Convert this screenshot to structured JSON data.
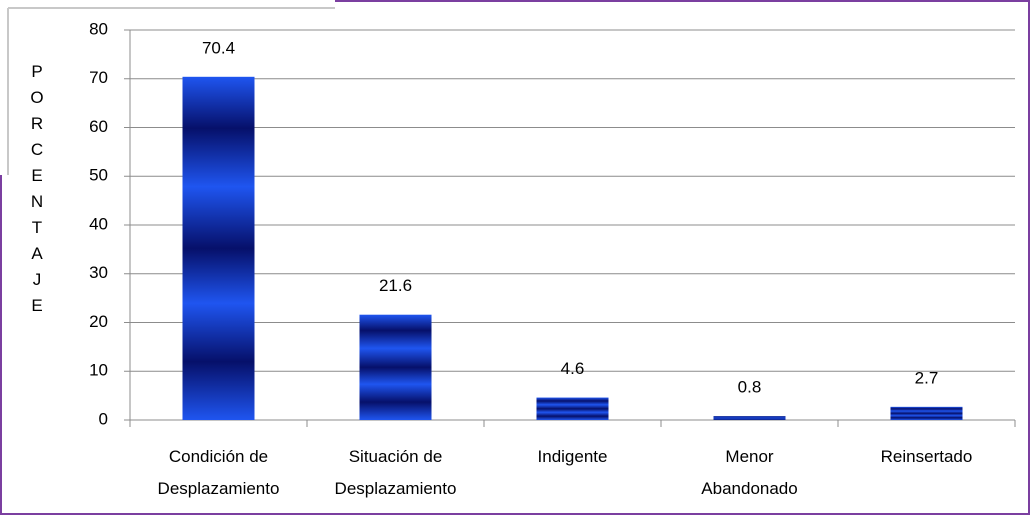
{
  "chart_data": {
    "type": "bar",
    "y_label": "PORCENTAJE",
    "categories": [
      "Condición de\nDesplazamiento",
      "Situación de\nDesplazamiento",
      "Indigente",
      "Menor\nAbandonado",
      "Reinsertado"
    ],
    "values": [
      70.4,
      21.6,
      4.6,
      0.8,
      2.7
    ],
    "color": "#1f55f0",
    "ylim": [
      0,
      80
    ],
    "yticks": [
      0,
      10,
      20,
      30,
      40,
      50,
      60,
      70,
      80
    ],
    "grid": true
  }
}
